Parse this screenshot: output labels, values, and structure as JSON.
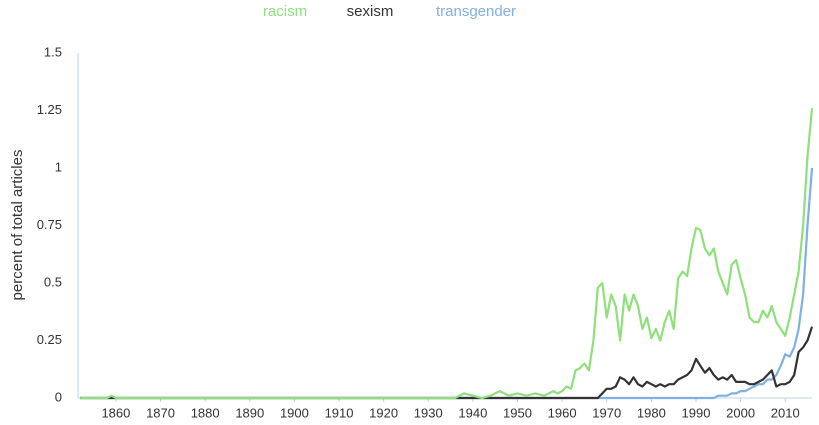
{
  "chart_data": {
    "type": "line",
    "y_label": "percent of total articles",
    "x": [
      1852,
      1858,
      1859,
      1860,
      1870,
      1880,
      1890,
      1900,
      1910,
      1920,
      1930,
      1936,
      1938,
      1940,
      1942,
      1944,
      1946,
      1948,
      1950,
      1952,
      1954,
      1956,
      1958,
      1959,
      1960,
      1961,
      1962,
      1963,
      1964,
      1965,
      1966,
      1967,
      1968,
      1969,
      1970,
      1971,
      1972,
      1973,
      1974,
      1975,
      1976,
      1977,
      1978,
      1979,
      1980,
      1981,
      1982,
      1983,
      1984,
      1985,
      1986,
      1987,
      1988,
      1989,
      1990,
      1991,
      1992,
      1993,
      1994,
      1995,
      1996,
      1997,
      1998,
      1999,
      2000,
      2001,
      2002,
      2003,
      2004,
      2005,
      2006,
      2007,
      2008,
      2009,
      2010,
      2011,
      2012,
      2013,
      2014,
      2015,
      2016
    ],
    "series": [
      {
        "name": "transgender",
        "color": "#7fb0e4",
        "values": [
          0,
          0,
          0,
          0,
          0,
          0,
          0,
          0,
          0,
          0,
          0,
          0,
          0,
          0,
          0,
          0,
          0,
          0,
          0,
          0,
          0,
          0,
          0,
          0,
          0,
          0,
          0,
          0,
          0,
          0,
          0,
          0,
          0,
          0,
          0,
          0,
          0,
          0,
          0,
          0,
          0,
          0,
          0,
          0,
          0,
          0,
          0,
          0,
          0,
          0,
          0,
          0,
          0,
          0,
          0,
          0,
          0,
          0,
          0,
          0.01,
          0.01,
          0.01,
          0.02,
          0.02,
          0.03,
          0.03,
          0.04,
          0.05,
          0.06,
          0.06,
          0.08,
          0.08,
          0.1,
          0.14,
          0.19,
          0.18,
          0.22,
          0.3,
          0.45,
          0.75,
          1.0
        ]
      },
      {
        "name": "sexism",
        "color": "#333333",
        "values": [
          0,
          0,
          0,
          0,
          0,
          0,
          0,
          0,
          0,
          0,
          0,
          0,
          0,
          0,
          0,
          0,
          0,
          0,
          0,
          0,
          0,
          0,
          0,
          0,
          0,
          0,
          0,
          0,
          0,
          0,
          0,
          0,
          0,
          0.02,
          0.04,
          0.04,
          0.05,
          0.09,
          0.08,
          0.06,
          0.09,
          0.06,
          0.05,
          0.07,
          0.06,
          0.05,
          0.06,
          0.05,
          0.06,
          0.06,
          0.08,
          0.09,
          0.1,
          0.12,
          0.17,
          0.14,
          0.11,
          0.13,
          0.1,
          0.08,
          0.09,
          0.08,
          0.1,
          0.07,
          0.07,
          0.07,
          0.06,
          0.06,
          0.07,
          0.08,
          0.1,
          0.12,
          0.05,
          0.06,
          0.06,
          0.07,
          0.1,
          0.2,
          0.22,
          0.25,
          0.31
        ]
      },
      {
        "name": "racism",
        "color": "#8fe07c",
        "values": [
          0,
          0,
          0.01,
          0,
          0,
          0,
          0,
          0,
          0,
          0,
          0,
          0,
          0.02,
          0.01,
          0,
          0.01,
          0.03,
          0.01,
          0.02,
          0.01,
          0.02,
          0.01,
          0.03,
          0.02,
          0.03,
          0.05,
          0.04,
          0.12,
          0.13,
          0.15,
          0.12,
          0.25,
          0.48,
          0.5,
          0.35,
          0.45,
          0.4,
          0.25,
          0.45,
          0.38,
          0.45,
          0.4,
          0.3,
          0.35,
          0.26,
          0.3,
          0.25,
          0.33,
          0.38,
          0.3,
          0.52,
          0.55,
          0.53,
          0.65,
          0.74,
          0.73,
          0.65,
          0.62,
          0.65,
          0.55,
          0.5,
          0.45,
          0.58,
          0.6,
          0.52,
          0.45,
          0.35,
          0.33,
          0.33,
          0.38,
          0.35,
          0.4,
          0.33,
          0.3,
          0.27,
          0.35,
          0.45,
          0.55,
          0.75,
          1.05,
          1.26
        ]
      }
    ],
    "legend_order": [
      2,
      1,
      0
    ],
    "xlim": [
      1851.5,
      2016
    ],
    "xticks": [
      1860,
      1870,
      1880,
      1890,
      1900,
      1910,
      1920,
      1930,
      1940,
      1950,
      1960,
      1970,
      1980,
      1990,
      2000,
      2010
    ],
    "ylim": [
      0,
      1.5
    ],
    "yticks": [
      0,
      0.25,
      0.5,
      0.75,
      1,
      1.25,
      1.5
    ]
  }
}
